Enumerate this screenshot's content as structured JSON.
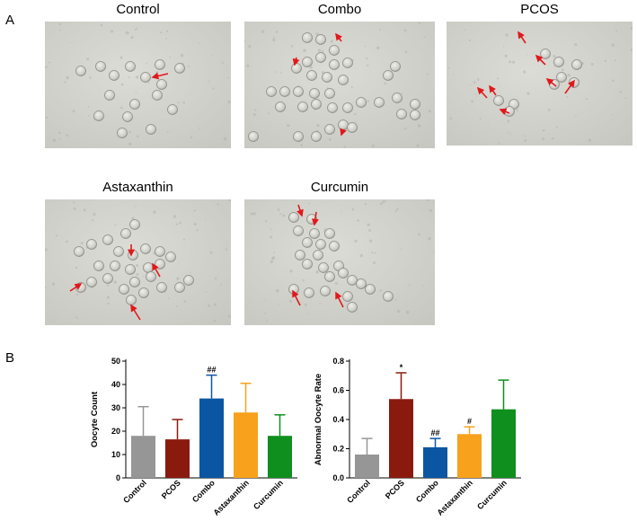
{
  "panels": {
    "a_label": "A",
    "b_label": "B"
  },
  "micrographs": [
    {
      "title": "Control"
    },
    {
      "title": "Combo"
    },
    {
      "title": "PCOS"
    },
    {
      "title": "Astaxanthin"
    },
    {
      "title": "Curcumin"
    }
  ],
  "colors": {
    "Control": "#969696",
    "PCOS": "#8b1a0e",
    "Combo": "#0a56a3",
    "Astaxanthin": "#f7a11c",
    "Curcumin": "#0f8f1e",
    "arrow": "#e0191c"
  },
  "chart_data": [
    {
      "type": "bar",
      "categories": [
        "Control",
        "PCOS",
        "Combo",
        "Astaxanthin",
        "Curcumin"
      ],
      "values": [
        18,
        16.5,
        34,
        28,
        18
      ],
      "errors": [
        12.5,
        8.5,
        10,
        12.5,
        9
      ],
      "significance": [
        "",
        "",
        "##",
        "",
        ""
      ],
      "ylabel": "Oocyte Count",
      "ylim": [
        0,
        50
      ],
      "yticks": [
        "0",
        "10",
        "20",
        "30",
        "40",
        "50"
      ],
      "grid": false
    },
    {
      "type": "bar",
      "categories": [
        "Control",
        "PCOS",
        "Combo",
        "Astaxanthin",
        "Curcumin"
      ],
      "values": [
        0.16,
        0.54,
        0.21,
        0.3,
        0.47
      ],
      "errors": [
        0.11,
        0.18,
        0.06,
        0.05,
        0.2
      ],
      "significance": [
        "",
        "*",
        "##",
        "#",
        ""
      ],
      "ylabel": "Abnormal Oocyte Rate",
      "ylim": [
        0,
        0.8
      ],
      "yticks": [
        "0.0",
        "0.2",
        "0.4",
        "0.6",
        "0.8"
      ],
      "grid": false
    }
  ]
}
